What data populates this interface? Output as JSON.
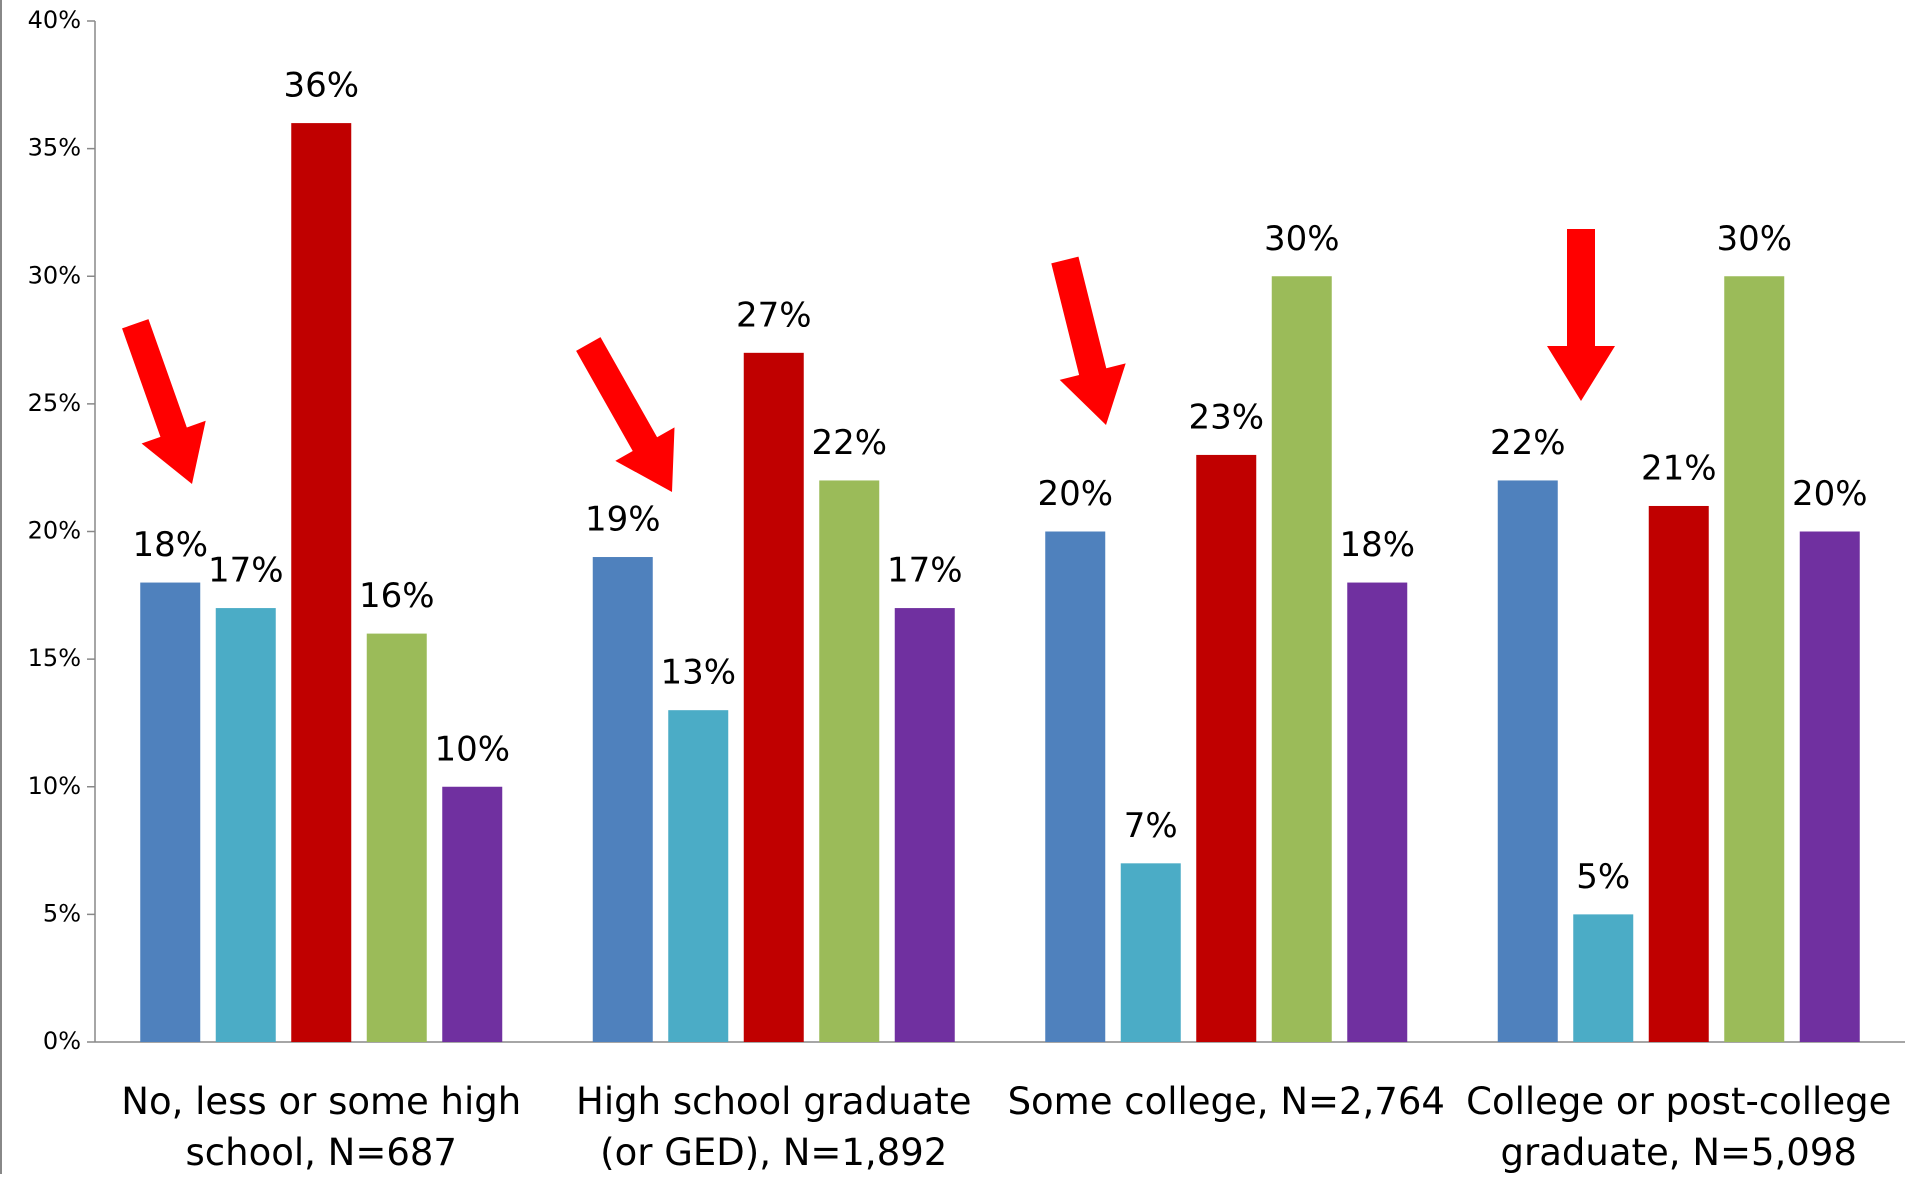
{
  "chart_data": {
    "type": "bar",
    "categories": [
      "No, less or some high school, N=687",
      "High school graduate (or GED), N=1,892",
      "Some college, N=2,764",
      "College or post-college graduate, N=5,098"
    ],
    "series": [
      {
        "color": "#4f81bd",
        "values": [
          18,
          19,
          20,
          22
        ],
        "value_labels": [
          "18%",
          "19%",
          "20%",
          "22%"
        ]
      },
      {
        "color": "#4bacc6",
        "values": [
          17,
          13,
          7,
          5
        ],
        "value_labels": [
          "17%",
          "13%",
          "7%",
          "5%"
        ]
      },
      {
        "color": "#c00000",
        "values": [
          36,
          27,
          23,
          21
        ],
        "value_labels": [
          "36%",
          "27%",
          "23%",
          "21%"
        ]
      },
      {
        "color": "#9bbb59",
        "values": [
          16,
          22,
          30,
          30
        ],
        "value_labels": [
          "16%",
          "22%",
          "30%",
          "30%"
        ]
      },
      {
        "color": "#7030a0",
        "values": [
          10,
          17,
          18,
          20
        ],
        "value_labels": [
          "10%",
          "17%",
          "18%",
          "20%"
        ]
      }
    ],
    "ylim": [
      0,
      40
    ],
    "yticks": [
      {
        "value": 0,
        "label": "0%"
      },
      {
        "value": 5,
        "label": "5%"
      },
      {
        "value": 10,
        "label": "10%"
      },
      {
        "value": 15,
        "label": "15%"
      },
      {
        "value": 20,
        "label": "20%"
      },
      {
        "value": 25,
        "label": "25%"
      },
      {
        "value": 30,
        "label": "30%"
      },
      {
        "value": 35,
        "label": "35%"
      },
      {
        "value": 40,
        "label": "40%"
      }
    ],
    "grid": false
  }
}
